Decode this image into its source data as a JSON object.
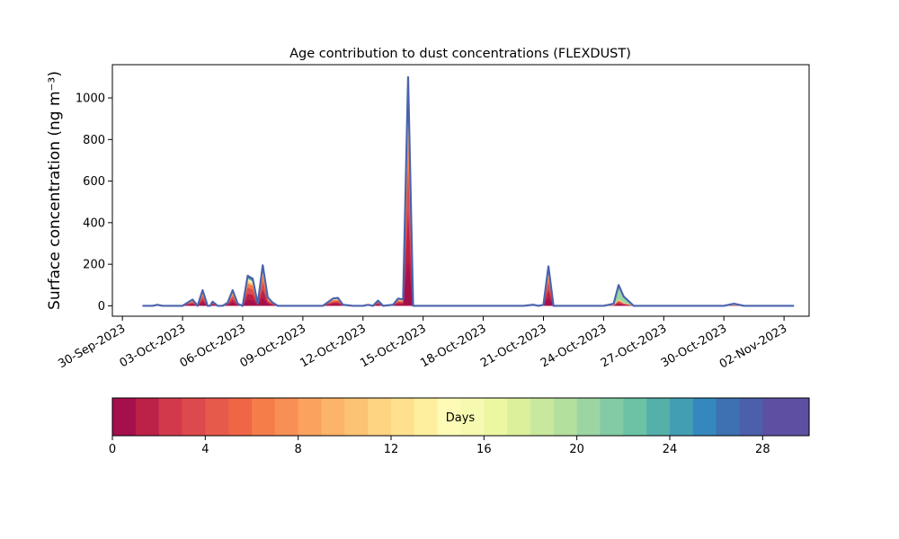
{
  "chart_data": {
    "type": "area",
    "title": "Age contribution to dust concentrations (FLEXDUST)",
    "ylabel": "Surface concentration (ng m⁻³)",
    "xlabel": "",
    "x_ticks": [
      "30-Sep-2023",
      "03-Oct-2023",
      "06-Oct-2023",
      "09-Oct-2023",
      "12-Oct-2023",
      "15-Oct-2023",
      "18-Oct-2023",
      "21-Oct-2023",
      "24-Oct-2023",
      "27-Oct-2023",
      "30-Oct-2023",
      "02-Nov-2023"
    ],
    "xlim": [
      "2023-09-29T12:00",
      "2023-11-03T06:00"
    ],
    "y_ticks": [
      "0",
      "200",
      "400",
      "600",
      "800",
      "1000"
    ],
    "ylim": [
      -50,
      1160
    ],
    "grid": false,
    "total_series": {
      "x": [
        "2023-10-01T00:00",
        "2023-10-01T12:00",
        "2023-10-01T18:00",
        "2023-10-02T00:00",
        "2023-10-02T06:00",
        "2023-10-02T12:00",
        "2023-10-03T00:00",
        "2023-10-03T12:00",
        "2023-10-03T18:00",
        "2023-10-04T00:00",
        "2023-10-04T06:00",
        "2023-10-04T09:00",
        "2023-10-04T12:00",
        "2023-10-04T18:00",
        "2023-10-05T00:00",
        "2023-10-05T06:00",
        "2023-10-05T12:00",
        "2023-10-05T18:00",
        "2023-10-06T00:00",
        "2023-10-06T06:00",
        "2023-10-06T12:00",
        "2023-10-06T18:00",
        "2023-10-07T00:00",
        "2023-10-07T06:00",
        "2023-10-07T12:00",
        "2023-10-07T18:00",
        "2023-10-08T00:00",
        "2023-10-09T00:00",
        "2023-10-10T00:00",
        "2023-10-10T12:00",
        "2023-10-10T18:00",
        "2023-10-11T00:00",
        "2023-10-11T12:00",
        "2023-10-12T00:00",
        "2023-10-12T06:00",
        "2023-10-12T12:00",
        "2023-10-12T18:00",
        "2023-10-13T00:00",
        "2023-10-13T12:00",
        "2023-10-13T18:00",
        "2023-10-14T00:00",
        "2023-10-14T06:00",
        "2023-10-14T12:00",
        "2023-10-14T18:00",
        "2023-10-15T00:00",
        "2023-10-15T12:00",
        "2023-10-16T00:00",
        "2023-10-17T00:00",
        "2023-10-18T00:00",
        "2023-10-19T00:00",
        "2023-10-20T00:00",
        "2023-10-20T12:00",
        "2023-10-20T18:00",
        "2023-10-21T00:00",
        "2023-10-21T06:00",
        "2023-10-21T12:00",
        "2023-10-22T00:00",
        "2023-10-23T00:00",
        "2023-10-24T00:00",
        "2023-10-24T06:00",
        "2023-10-24T12:00",
        "2023-10-24T18:00",
        "2023-10-25T00:00",
        "2023-10-25T12:00",
        "2023-10-26T00:00",
        "2023-10-28T00:00",
        "2023-10-30T00:00",
        "2023-10-30T12:00",
        "2023-10-31T00:00",
        "2023-11-01T00:00",
        "2023-11-02T00:00",
        "2023-11-02T12:00"
      ],
      "values": [
        0,
        0,
        5,
        0,
        0,
        0,
        0,
        30,
        0,
        75,
        0,
        0,
        20,
        0,
        0,
        15,
        75,
        10,
        0,
        145,
        130,
        10,
        195,
        40,
        15,
        0,
        0,
        0,
        0,
        35,
        38,
        5,
        0,
        0,
        5,
        0,
        25,
        0,
        5,
        35,
        30,
        1100,
        0,
        0,
        0,
        0,
        0,
        0,
        0,
        0,
        0,
        5,
        0,
        5,
        190,
        0,
        0,
        0,
        0,
        5,
        10,
        100,
        45,
        0,
        0,
        0,
        0,
        10,
        0,
        0,
        0,
        0
      ]
    },
    "colorbar": {
      "label": "Days",
      "min": 0,
      "max": 30,
      "tick_values": [
        0,
        4,
        8,
        12,
        16,
        20,
        24,
        28
      ],
      "tick_labels": [
        "0",
        "4",
        "8",
        "12",
        "16",
        "20",
        "24",
        "28"
      ],
      "colors": [
        "#a50f4c",
        "#bc2148",
        "#d23a4b",
        "#dd4a4d",
        "#e65a4b",
        "#ef6646",
        "#f57d4a",
        "#f89055",
        "#fba35e",
        "#fcb468",
        "#fdc374",
        "#fed381",
        "#fee08e",
        "#feef9e",
        "#fefbb6",
        "#f6fab0",
        "#ecf7a2",
        "#dcf09c",
        "#c8e89e",
        "#b4e09e",
        "#9bd5a2",
        "#82cba4",
        "#6bc2a5",
        "#55b0a9",
        "#429fb3",
        "#3488bd",
        "#3d71b1",
        "#4b5fab",
        "#5e4fa2",
        "#5e4fa2"
      ]
    }
  }
}
